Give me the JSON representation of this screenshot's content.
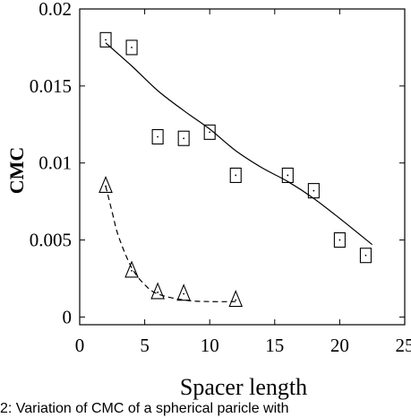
{
  "chart_data": {
    "type": "scatter",
    "xlabel": "Spacer length",
    "ylabel": "CMC",
    "xlim": [
      0,
      25
    ],
    "ylim": [
      -0.0005,
      0.02
    ],
    "x_ticks": [
      "0",
      "5",
      "10",
      "15",
      "20",
      "25"
    ],
    "y_ticks": [
      "0",
      "0.005",
      "0.01",
      "0.015",
      "0.02"
    ],
    "grid": false,
    "series": [
      {
        "marker": "square",
        "points": [
          {
            "x": 2,
            "y": 0.018
          },
          {
            "x": 4,
            "y": 0.0175
          },
          {
            "x": 6,
            "y": 0.0117
          },
          {
            "x": 8,
            "y": 0.0116
          },
          {
            "x": 10,
            "y": 0.012
          },
          {
            "x": 12,
            "y": 0.0092
          },
          {
            "x": 16,
            "y": 0.0092
          },
          {
            "x": 18,
            "y": 0.0082
          },
          {
            "x": 20,
            "y": 0.005
          },
          {
            "x": 22,
            "y": 0.004
          }
        ],
        "fit_line": {
          "style": "solid",
          "points": [
            {
              "x": 2,
              "y": 0.0178
            },
            {
              "x": 4,
              "y": 0.0163
            },
            {
              "x": 6,
              "y": 0.0147
            },
            {
              "x": 8,
              "y": 0.0134
            },
            {
              "x": 10,
              "y": 0.0122
            },
            {
              "x": 12,
              "y": 0.0108
            },
            {
              "x": 14,
              "y": 0.0097
            },
            {
              "x": 16,
              "y": 0.0088
            },
            {
              "x": 18,
              "y": 0.0077
            },
            {
              "x": 20,
              "y": 0.0064
            },
            {
              "x": 22.5,
              "y": 0.0047
            }
          ]
        }
      },
      {
        "marker": "triangle",
        "points": [
          {
            "x": 2,
            "y": 0.0085
          },
          {
            "x": 4,
            "y": 0.003
          },
          {
            "x": 6,
            "y": 0.0016
          },
          {
            "x": 8,
            "y": 0.0015
          },
          {
            "x": 12,
            "y": 0.0011
          }
        ],
        "fit_line": {
          "style": "dashed",
          "points": [
            {
              "x": 2,
              "y": 0.0085
            },
            {
              "x": 2.5,
              "y": 0.0068
            },
            {
              "x": 3,
              "y": 0.0052
            },
            {
              "x": 4,
              "y": 0.0032
            },
            {
              "x": 5,
              "y": 0.0021
            },
            {
              "x": 6,
              "y": 0.0015
            },
            {
              "x": 8,
              "y": 0.0011
            },
            {
              "x": 10,
              "y": 0.001
            },
            {
              "x": 12,
              "y": 0.001
            }
          ]
        }
      }
    ]
  },
  "caption": "2: Variation of CMC of a spherical paricle with"
}
